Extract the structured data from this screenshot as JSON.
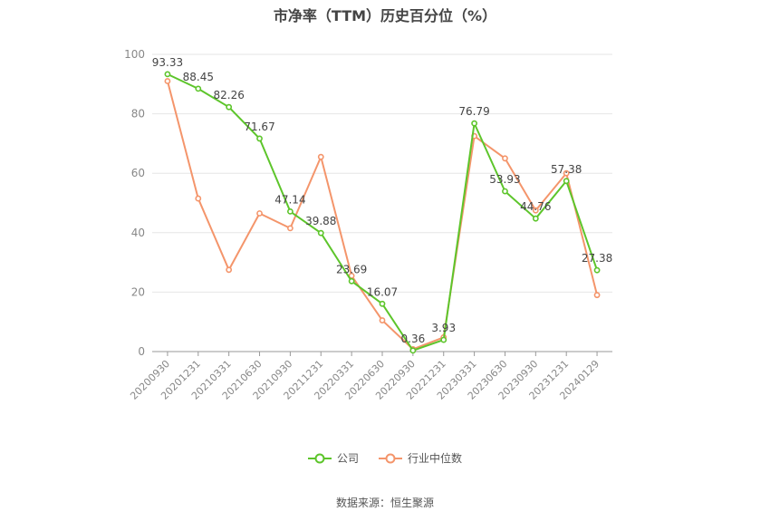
{
  "chart_data": {
    "type": "line",
    "title": "市净率（TTM）历史百分位（%）",
    "categories": [
      "20200930",
      "20201231",
      "20210331",
      "20210630",
      "20210930",
      "20211231",
      "20220331",
      "20220630",
      "20220930",
      "20221231",
      "20230331",
      "20230630",
      "20230930",
      "20231231",
      "20240129"
    ],
    "ylim": [
      0,
      100
    ],
    "yticks": [
      0,
      20,
      40,
      60,
      80,
      100
    ],
    "grid": true,
    "legend_position": "bottom",
    "series": [
      {
        "name": "公司",
        "color": "#5dc52b",
        "values": [
          93.33,
          88.45,
          82.26,
          71.67,
          47.14,
          39.88,
          23.69,
          16.07,
          0.36,
          3.93,
          76.79,
          53.93,
          44.76,
          57.38,
          27.38
        ],
        "labels": [
          "93.33",
          "88.45",
          "82.26",
          "71.67",
          "47.14",
          "39.88",
          "23.69",
          "16.07",
          "0.36",
          "3.93",
          "76.79",
          "53.93",
          "44.76",
          "57.38",
          "27.38"
        ]
      },
      {
        "name": "行业中位数",
        "color": "#f4956b",
        "values": [
          91.0,
          51.5,
          27.5,
          46.5,
          41.5,
          65.5,
          25.5,
          10.5,
          0.8,
          4.8,
          72.5,
          65.0,
          47.5,
          60.0,
          19.0
        ]
      }
    ]
  },
  "source": "数据来源：恒生聚源"
}
